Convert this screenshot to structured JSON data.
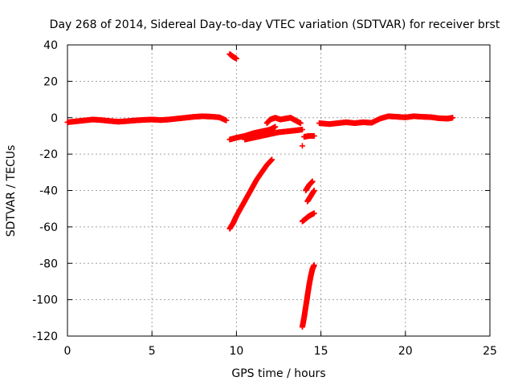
{
  "chart_data": {
    "type": "scatter",
    "title": "Day 268 of 2014, Sidereal Day-to-day VTEC variation (SDTVAR) for receiver brst",
    "xlabel": "GPS time / hours",
    "ylabel": "SDTVAR / TECUs",
    "xlim": [
      0,
      25
    ],
    "ylim": [
      -120,
      40
    ],
    "xticks": [
      0,
      5,
      10,
      15,
      20,
      25
    ],
    "yticks": [
      -120,
      -100,
      -80,
      -60,
      -40,
      -20,
      0,
      20,
      40
    ],
    "xtick_labels": [
      "0",
      "5",
      "10",
      "15",
      "20",
      "25"
    ],
    "ytick_labels": [
      "-120",
      "-100",
      "-80",
      "-60",
      "-40",
      "-20",
      "0",
      "20",
      "40"
    ],
    "grid": true,
    "legend": "none",
    "marker": "plus",
    "color": "#ff0000",
    "series": [
      {
        "points": [
          [
            0.0,
            -2.5
          ],
          [
            0.5,
            -2.0
          ],
          [
            1.0,
            -1.5
          ],
          [
            1.5,
            -1.0
          ],
          [
            2.0,
            -1.3
          ],
          [
            2.5,
            -1.8
          ],
          [
            3.0,
            -2.2
          ],
          [
            3.5,
            -1.9
          ],
          [
            4.0,
            -1.5
          ],
          [
            4.5,
            -1.2
          ],
          [
            5.0,
            -1.0
          ],
          [
            5.5,
            -1.3
          ],
          [
            6.0,
            -1.0
          ],
          [
            6.5,
            -0.5
          ],
          [
            7.0,
            0.0
          ],
          [
            7.5,
            0.5
          ],
          [
            8.0,
            0.8
          ],
          [
            8.5,
            0.6
          ],
          [
            9.0,
            0.2
          ],
          [
            9.4,
            -1.5
          ]
        ]
      },
      {
        "points": [
          [
            9.6,
            35.0
          ],
          [
            9.8,
            33.5
          ],
          [
            10.0,
            32.5
          ]
        ]
      },
      {
        "points": [
          [
            9.6,
            -12.0
          ],
          [
            10.0,
            -11.0
          ],
          [
            10.5,
            -10.0
          ],
          [
            11.0,
            -8.5
          ],
          [
            11.5,
            -7.5
          ],
          [
            12.0,
            -6.5
          ],
          [
            12.3,
            -5.0
          ]
        ]
      },
      {
        "points": [
          [
            10.5,
            -12.0
          ],
          [
            11.0,
            -11.0
          ],
          [
            11.5,
            -10.0
          ],
          [
            12.0,
            -9.0
          ],
          [
            12.5,
            -8.0
          ],
          [
            13.0,
            -7.5
          ],
          [
            13.5,
            -7.0
          ],
          [
            13.9,
            -6.5
          ]
        ]
      },
      {
        "points": [
          [
            11.8,
            -3.0
          ],
          [
            12.0,
            -1.0
          ],
          [
            12.3,
            0.0
          ],
          [
            12.6,
            -1.0
          ],
          [
            12.9,
            -0.5
          ],
          [
            13.2,
            0.0
          ],
          [
            13.5,
            -1.5
          ],
          [
            13.8,
            -3.0
          ]
        ]
      },
      {
        "points": [
          [
            9.6,
            -61.0
          ],
          [
            9.8,
            -58.0
          ],
          [
            10.0,
            -54.0
          ],
          [
            10.3,
            -49.0
          ],
          [
            10.6,
            -44.0
          ],
          [
            10.9,
            -39.0
          ],
          [
            11.2,
            -34.0
          ],
          [
            11.5,
            -30.0
          ],
          [
            11.8,
            -26.0
          ],
          [
            12.1,
            -23.0
          ]
        ]
      },
      {
        "points": [
          [
            13.9,
            -15.5
          ]
        ]
      },
      {
        "points": [
          [
            14.0,
            -10.5
          ],
          [
            14.3,
            -10.0
          ],
          [
            14.6,
            -10.0
          ]
        ]
      },
      {
        "points": [
          [
            14.1,
            -40.0
          ],
          [
            14.3,
            -37.0
          ],
          [
            14.5,
            -35.0
          ]
        ]
      },
      {
        "points": [
          [
            14.2,
            -46.0
          ],
          [
            14.4,
            -43.0
          ],
          [
            14.6,
            -40.0
          ]
        ]
      },
      {
        "points": [
          [
            13.9,
            -57.0
          ],
          [
            14.1,
            -55.5
          ],
          [
            14.3,
            -54.0
          ],
          [
            14.6,
            -52.5
          ]
        ]
      },
      {
        "points": [
          [
            13.9,
            -115.0
          ],
          [
            14.0,
            -110.0
          ],
          [
            14.1,
            -104.0
          ],
          [
            14.2,
            -98.0
          ],
          [
            14.3,
            -92.0
          ],
          [
            14.4,
            -87.0
          ],
          [
            14.5,
            -83.0
          ],
          [
            14.6,
            -81.0
          ]
        ]
      },
      {
        "points": [
          [
            14.9,
            -3.0
          ],
          [
            15.5,
            -3.5
          ],
          [
            16.0,
            -3.0
          ],
          [
            16.5,
            -2.5
          ],
          [
            17.0,
            -3.0
          ],
          [
            17.5,
            -2.5
          ],
          [
            18.0,
            -2.8
          ],
          [
            18.5,
            -0.5
          ],
          [
            19.0,
            0.8
          ],
          [
            19.5,
            0.5
          ],
          [
            20.0,
            0.2
          ],
          [
            20.5,
            0.8
          ],
          [
            21.0,
            0.5
          ],
          [
            21.5,
            0.3
          ],
          [
            22.0,
            -0.3
          ],
          [
            22.5,
            -0.5
          ],
          [
            22.8,
            0.0
          ]
        ]
      }
    ]
  }
}
